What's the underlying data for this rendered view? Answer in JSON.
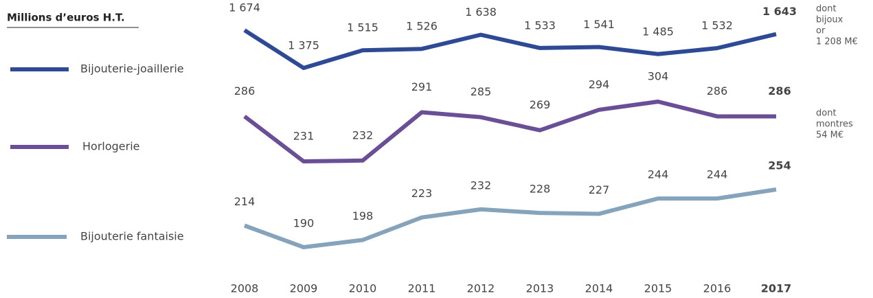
{
  "chart_data": {
    "type": "line",
    "title": "Millions d’euros H.T.",
    "categories": [
      "2008",
      "2009",
      "2010",
      "2011",
      "2012",
      "2013",
      "2014",
      "2015",
      "2016",
      "2017"
    ],
    "series": [
      {
        "name": "Bijouterie-joaillerie",
        "color": "#2e4a94",
        "values": [
          1674,
          1375,
          1515,
          1526,
          1638,
          1533,
          1541,
          1485,
          1532,
          1643
        ],
        "value_labels": [
          "1 674",
          "1 375",
          "1 515",
          "1 526",
          "1 638",
          "1 533",
          "1 541",
          "1 485",
          "1 532",
          "1 643"
        ],
        "note": [
          "dont",
          "bijoux",
          "or",
          "1 208 M€"
        ]
      },
      {
        "name": "Horlogerie",
        "color": "#6b4f96",
        "values": [
          286,
          231,
          232,
          291,
          285,
          269,
          294,
          304,
          286,
          286
        ],
        "note": [
          "dont",
          "montres",
          "54 M€"
        ]
      },
      {
        "name": "Bijouterie fantaisie",
        "color": "#85a3bb",
        "values": [
          214,
          190,
          198,
          223,
          232,
          228,
          227,
          244,
          244,
          254
        ]
      }
    ]
  }
}
